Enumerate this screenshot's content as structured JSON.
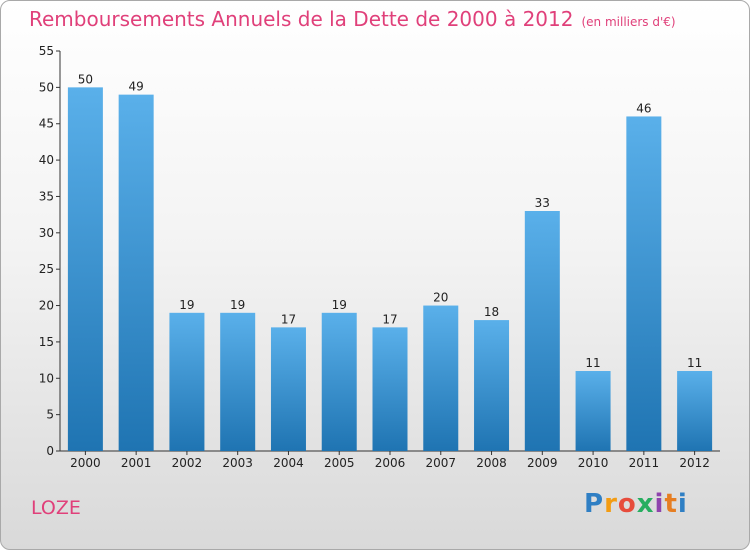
{
  "title": "Remboursements Annuels de la Dette de 2000 à 2012",
  "subtitle": "(en milliers d'€)",
  "commune": "LOZE",
  "logo": {
    "text": "Proxiti"
  },
  "colors": {
    "title": "#e0407a",
    "bar_top": "#5ab0ea",
    "bar_bottom": "#1f74b2",
    "axis": "#333333"
  },
  "chart_data": {
    "type": "bar",
    "title": "Remboursements Annuels de la Dette de 2000 à 2012",
    "subtitle": "(en milliers d'€)",
    "categories": [
      "2000",
      "2001",
      "2002",
      "2003",
      "2004",
      "2005",
      "2006",
      "2007",
      "2008",
      "2009",
      "2010",
      "2011",
      "2012"
    ],
    "values": [
      50,
      49,
      19,
      19,
      17,
      19,
      17,
      20,
      18,
      33,
      11,
      46,
      11
    ],
    "ylim": [
      0,
      55
    ],
    "yticks": [
      0,
      5,
      10,
      15,
      20,
      25,
      30,
      35,
      40,
      45,
      50,
      55
    ],
    "grid": false,
    "data_labels": true
  }
}
